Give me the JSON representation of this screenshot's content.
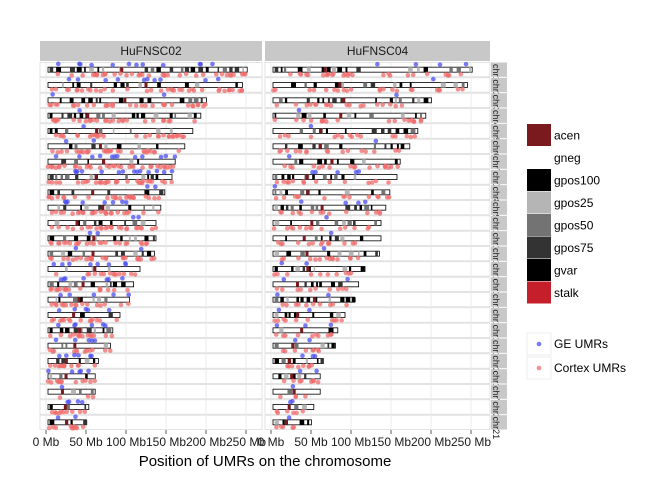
{
  "chart_data": {
    "type": "scatter",
    "xlabel": "Position of UMRs on the chromosome",
    "ylabel": "",
    "title": "",
    "x_unit": "Mb",
    "xlim": [
      0,
      260
    ],
    "x_ticks": [
      0,
      50,
      100,
      150,
      200,
      250
    ],
    "x_tick_labels": [
      "0 Mb",
      "50 Mb",
      "100 Mb",
      "150 Mb",
      "200 Mb",
      "250 Mb"
    ],
    "facets": [
      "HuFNSC02",
      "HuFNSC04"
    ],
    "row_strips": [
      "chr1",
      "chr2",
      "chr3",
      "chr4",
      "chr5",
      "chr6",
      "chr7",
      "chrX",
      "chr8",
      "chr9",
      "chr11",
      "chr10",
      "chr12",
      "chr13",
      "chr14",
      "chr15",
      "chr16",
      "chr17",
      "chr18",
      "chr20",
      "chr19",
      "chrY",
      "chr22",
      "chr21"
    ],
    "chromosome_lengths_mb": [
      249,
      243,
      198,
      191,
      181,
      171,
      159,
      155,
      146,
      141,
      135,
      135,
      133,
      115,
      107,
      102,
      90,
      81,
      78,
      63,
      59,
      59,
      51,
      48
    ],
    "band_legend": {
      "title": "",
      "items": [
        {
          "label": "acen",
          "color": "#7a1a1f"
        },
        {
          "label": "gneg",
          "color": "#ffffff"
        },
        {
          "label": "gpos100",
          "color": "#000000"
        },
        {
          "label": "gpos25",
          "color": "#b5b5b5"
        },
        {
          "label": "gpos50",
          "color": "#737373"
        },
        {
          "label": "gpos75",
          "color": "#333333"
        },
        {
          "label": "gvar",
          "color": "#000000"
        },
        {
          "label": "stalk",
          "color": "#c41f2a"
        }
      ]
    },
    "series": [
      {
        "name": "GE UMRs",
        "color": "#4a4ef0"
      },
      {
        "name": "Cortex UMRs",
        "color": "#f06a6a"
      }
    ],
    "density": {
      "HuFNSC02": {
        "ge": [
          12,
          10,
          2,
          1,
          1,
          2,
          12,
          14,
          2,
          8,
          2,
          2,
          2,
          8,
          7,
          5,
          5,
          6,
          5,
          6,
          5,
          1,
          4,
          2
        ],
        "cortex": [
          35,
          36,
          30,
          28,
          28,
          28,
          33,
          30,
          24,
          24,
          24,
          24,
          24,
          14,
          16,
          16,
          14,
          14,
          12,
          12,
          12,
          3,
          10,
          10
        ]
      },
      "HuFNSC04": {
        "ge": [
          4,
          1,
          1,
          1,
          1,
          1,
          1,
          5,
          1,
          4,
          1,
          1,
          1,
          2,
          2,
          2,
          2,
          3,
          2,
          3,
          2,
          1,
          2,
          1
        ],
        "cortex": [
          26,
          22,
          18,
          18,
          16,
          16,
          18,
          14,
          14,
          14,
          14,
          14,
          14,
          10,
          10,
          10,
          10,
          10,
          8,
          8,
          8,
          4,
          6,
          5
        ]
      }
    }
  }
}
